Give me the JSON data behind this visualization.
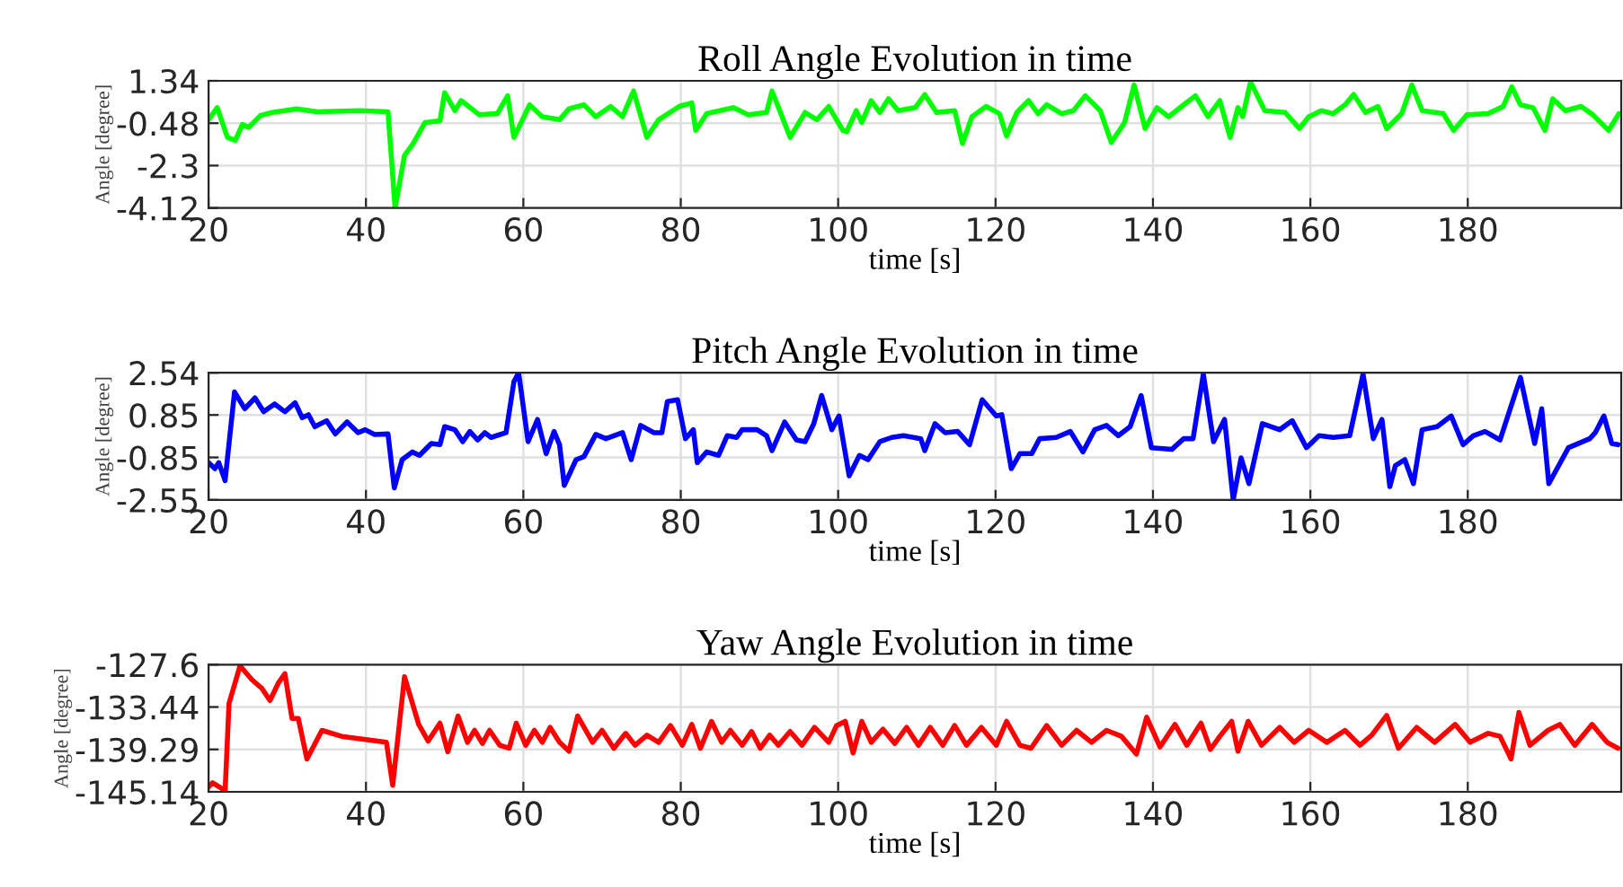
{
  "chart_data": [
    {
      "type": "line",
      "title": "Roll Angle Evolution in time",
      "xlabel": "time [s]",
      "ylabel": "Angle [degree]",
      "xlim": [
        20,
        199.5
      ],
      "xticks": [
        20,
        40,
        60,
        80,
        100,
        120,
        140,
        160,
        180
      ],
      "ylim": [
        -4.12,
        1.34
      ],
      "yticks": [
        -4.12,
        -2.3,
        -0.48,
        1.34
      ],
      "grid": true,
      "series": [
        {
          "color": "#00ff00",
          "x": [
            20,
            21.1,
            22.4,
            23.4,
            24.3,
            25.1,
            26.6,
            28.1,
            31.2,
            33.8,
            39.2,
            42.8,
            43.7,
            44.9,
            46.0,
            47.5,
            49.4,
            50.0,
            51.3,
            52.1,
            54.4,
            56.7,
            58.0,
            58.8,
            60.8,
            62.4,
            64.6,
            65.8,
            67.7,
            69.2,
            71.1,
            72.6,
            74.0,
            75.7,
            77.2,
            79.8,
            81.4,
            81.9,
            83.3,
            86.7,
            88.6,
            90.9,
            91.6,
            93.9,
            95.8,
            97.3,
            98.8,
            100.6,
            101.1,
            102.3,
            103.0,
            104.2,
            105.3,
            106.4,
            107.6,
            109.8,
            111.0,
            112.5,
            114.8,
            115.8,
            117.0,
            118.8,
            120.5,
            121.4,
            122.7,
            124.2,
            125.4,
            126.5,
            128.4,
            129.9,
            131.4,
            133.3,
            134.7,
            136.4,
            137.6,
            139.0,
            140.5,
            142.0,
            143.9,
            145.4,
            147.0,
            148.5,
            149.8,
            150.8,
            151.4,
            152.4,
            154.2,
            156.8,
            158.6,
            159.8,
            161.4,
            162.9,
            164.4,
            165.5,
            167.0,
            168.6,
            169.7,
            171.6,
            172.9,
            174.2,
            176.9,
            178.2,
            179.9,
            182.6,
            184.5,
            185.6,
            186.7,
            188.3,
            189.8,
            190.8,
            192.4,
            194.4,
            195.9,
            197.9,
            199.2
          ],
          "values": [
            -0.33,
            0.19,
            -1.09,
            -1.22,
            -0.53,
            -0.66,
            -0.15,
            -0.02,
            0.14,
            0.01,
            0.06,
            0.01,
            -4.12,
            -1.86,
            -1.35,
            -0.45,
            -0.38,
            0.83,
            0.06,
            0.49,
            -0.12,
            -0.07,
            0.7,
            -1.09,
            0.31,
            -0.2,
            -0.33,
            0.14,
            0.31,
            -0.2,
            0.24,
            -0.2,
            0.9,
            -1.09,
            -0.33,
            0.24,
            0.39,
            -0.79,
            -0.07,
            0.19,
            -0.12,
            -0.02,
            0.9,
            -1.09,
            -0.02,
            -0.33,
            0.24,
            -0.79,
            -0.84,
            0.06,
            -0.45,
            0.49,
            -0.02,
            0.57,
            0.06,
            0.19,
            0.75,
            -0.02,
            0.06,
            -1.35,
            -0.2,
            0.24,
            -0.07,
            -1.04,
            -0.02,
            0.49,
            -0.07,
            0.31,
            -0.07,
            0.06,
            0.7,
            0.06,
            -1.3,
            -0.45,
            1.16,
            -0.71,
            0.19,
            -0.2,
            0.31,
            0.7,
            -0.2,
            0.49,
            -1.09,
            0.19,
            -0.2,
            1.29,
            0.06,
            -0.02,
            -0.71,
            -0.2,
            0.06,
            -0.07,
            0.31,
            0.75,
            -0.02,
            0.24,
            -0.71,
            -0.07,
            1.16,
            0.06,
            -0.07,
            -0.79,
            -0.12,
            -0.07,
            0.24,
            1.08,
            0.31,
            0.19,
            -0.79,
            0.57,
            0.06,
            0.24,
            -0.12,
            -0.79,
            -0.07
          ]
        }
      ]
    },
    {
      "type": "line",
      "title": "Pitch Angle Evolution in time",
      "xlabel": "time [s]",
      "ylabel": "Angle [degree]",
      "xlim": [
        20,
        199.5
      ],
      "xticks": [
        20,
        40,
        60,
        80,
        100,
        120,
        140,
        160,
        180
      ],
      "ylim": [
        -2.55,
        2.54
      ],
      "yticks": [
        -2.55,
        -0.85,
        0.85,
        2.54
      ],
      "grid": true,
      "series": [
        {
          "color": "#0000ff",
          "x": [
            20,
            20.8,
            21.3,
            22.1,
            23.3,
            24.6,
            25.9,
            27.0,
            28.4,
            29.7,
            31.0,
            31.9,
            32.7,
            33.5,
            35.0,
            36.1,
            37.6,
            39.0,
            39.9,
            41.1,
            42.8,
            43.6,
            44.6,
            45.9,
            46.8,
            48.3,
            49.4,
            50.0,
            51.3,
            52.3,
            53.2,
            54.2,
            55.1,
            55.9,
            57.8,
            58.8,
            59.4,
            60.6,
            61.8,
            62.9,
            63.9,
            64.6,
            65.2,
            66.7,
            67.7,
            69.2,
            70.5,
            72.6,
            73.7,
            74.9,
            76.6,
            77.6,
            78.3,
            79.6,
            80.6,
            81.6,
            82.1,
            83.3,
            84.8,
            85.9,
            87.1,
            87.8,
            89.7,
            90.9,
            91.6,
            93.2,
            94.7,
            95.8,
            96.9,
            97.9,
            99.2,
            100.1,
            101.4,
            102.7,
            103.8,
            105.3,
            106.8,
            108.3,
            110.5,
            111.0,
            112.3,
            113.6,
            115.2,
            116.7,
            118.3,
            120.1,
            120.8,
            122.0,
            123.1,
            124.6,
            125.6,
            127.7,
            129.5,
            131.1,
            132.6,
            134.1,
            135.6,
            137.1,
            138.5,
            139.8,
            142.4,
            143.9,
            145.1,
            146.4,
            147.7,
            149.1,
            150.2,
            151.2,
            152.2,
            153.9,
            156.1,
            157.7,
            159.5,
            161.1,
            162.9,
            165.0,
            166.7,
            168.0,
            169.1,
            170.1,
            170.8,
            172.0,
            173.1,
            174.2,
            176.1,
            177.9,
            179.4,
            180.7,
            182.2,
            184.1,
            185.6,
            186.7,
            188.5,
            189.4,
            190.3,
            192.8,
            195.5,
            196.2,
            197.3,
            198.3,
            199.1
          ],
          "values": [
            -1.06,
            -1.3,
            -1.06,
            -1.78,
            1.77,
            1.1,
            1.53,
            0.98,
            1.29,
            0.98,
            1.34,
            0.74,
            0.86,
            0.38,
            0.62,
            0.09,
            0.57,
            0.14,
            0.26,
            0.07,
            0.09,
            -2.07,
            -0.94,
            -0.63,
            -0.77,
            -0.29,
            -0.34,
            0.38,
            0.26,
            -0.22,
            0.19,
            -0.15,
            0.14,
            -0.05,
            0.14,
            2.18,
            2.54,
            -0.22,
            0.67,
            -0.7,
            0.19,
            -0.34,
            -1.97,
            -0.94,
            -0.82,
            0.07,
            -0.1,
            0.14,
            -0.94,
            0.43,
            0.14,
            0.14,
            1.39,
            1.46,
            -0.1,
            0.26,
            -1.06,
            -0.63,
            -0.77,
            0.02,
            -0.05,
            0.26,
            0.26,
            0.02,
            -0.58,
            0.57,
            -0.15,
            -0.22,
            0.5,
            1.63,
            0.26,
            0.81,
            -1.59,
            -0.77,
            -0.94,
            -0.22,
            -0.05,
            0.02,
            -0.1,
            -0.58,
            0.5,
            0.14,
            0.19,
            -0.34,
            1.46,
            0.81,
            0.86,
            -1.3,
            -0.7,
            -0.7,
            -0.1,
            -0.05,
            0.19,
            -0.63,
            0.26,
            0.43,
            0.02,
            0.38,
            1.63,
            -0.46,
            -0.53,
            -0.1,
            -0.1,
            2.49,
            -0.22,
            0.67,
            -2.55,
            -0.87,
            -1.9,
            0.5,
            0.26,
            0.62,
            -0.46,
            0.02,
            -0.05,
            0.02,
            2.49,
            -0.1,
            0.67,
            -2.02,
            -1.18,
            -0.94,
            -1.9,
            0.26,
            0.38,
            0.81,
            -0.34,
            0.02,
            0.19,
            -0.15,
            1.29,
            2.35,
            -0.29,
            1.1,
            -1.9,
            -0.46,
            -0.1,
            0.14,
            0.81,
            -0.29,
            -0.34
          ]
        }
      ]
    },
    {
      "type": "line",
      "title": "Yaw Angle Evolution in time",
      "xlabel": "time [s]",
      "ylabel": "Angle [degree]",
      "xlim": [
        20,
        199.5
      ],
      "xticks": [
        20,
        40,
        60,
        80,
        100,
        120,
        140,
        160,
        180
      ],
      "ylim": [
        -145.14,
        -127.6
      ],
      "yticks": [
        -145.14,
        -139.29,
        -133.44,
        -127.6
      ],
      "grid": true,
      "series": [
        {
          "color": "#ff0000",
          "x": [
            20,
            20.5,
            21.7,
            22.1,
            22.6,
            24.0,
            25.5,
            26.8,
            27.8,
            28.9,
            29.7,
            30.6,
            31.4,
            32.5,
            34.4,
            36.9,
            42.6,
            43.4,
            44.9,
            46.7,
            47.9,
            49.4,
            50.4,
            51.7,
            52.9,
            53.8,
            54.8,
            55.7,
            57.0,
            58.2,
            59.1,
            60.3,
            61.4,
            62.4,
            63.4,
            64.6,
            65.8,
            66.9,
            68.8,
            70.0,
            71.5,
            73.0,
            74.2,
            75.7,
            77.2,
            78.7,
            80.2,
            81.4,
            82.5,
            83.9,
            85.2,
            86.3,
            87.8,
            89.0,
            90.1,
            91.3,
            92.4,
            93.9,
            95.4,
            97.0,
            98.8,
            99.8,
            100.9,
            101.9,
            103.0,
            104.2,
            105.7,
            107.2,
            108.7,
            110.2,
            111.7,
            113.3,
            114.8,
            116.3,
            118.2,
            120.1,
            121.4,
            123.1,
            124.5,
            126.5,
            128.4,
            130.3,
            132.2,
            134.1,
            136.0,
            137.9,
            139.2,
            140.9,
            142.8,
            144.3,
            146.1,
            147.3,
            148.5,
            150.0,
            150.8,
            152.1,
            153.8,
            156.1,
            157.95,
            159.8,
            162.1,
            164.4,
            166.3,
            167.8,
            169.7,
            171.2,
            173.5,
            175.8,
            178.4,
            180.3,
            182.6,
            184.1,
            185.5,
            186.5,
            187.9,
            190.2,
            191.7,
            193.6,
            195.8,
            197.7,
            199.1
          ],
          "values": [
            -144.48,
            -143.9,
            -144.7,
            -145.14,
            -132.95,
            -127.76,
            -129.66,
            -130.89,
            -132.54,
            -130.07,
            -128.84,
            -135.01,
            -135.01,
            -140.61,
            -136.66,
            -137.48,
            -138.31,
            -144.23,
            -129.25,
            -135.84,
            -138.14,
            -135.67,
            -139.62,
            -134.68,
            -138.31,
            -136.66,
            -138.47,
            -136.66,
            -138.72,
            -139.13,
            -135.67,
            -138.72,
            -136.66,
            -138.31,
            -136.25,
            -138.31,
            -139.54,
            -134.68,
            -138.31,
            -136.66,
            -139.13,
            -137.07,
            -138.72,
            -137.32,
            -138.31,
            -136.0,
            -138.72,
            -135.84,
            -139.13,
            -135.42,
            -138.31,
            -136.66,
            -138.72,
            -136.82,
            -139.13,
            -137.32,
            -138.72,
            -136.82,
            -138.72,
            -136.25,
            -138.31,
            -136.0,
            -135.42,
            -139.79,
            -135.42,
            -138.31,
            -136.49,
            -138.47,
            -136.25,
            -138.72,
            -136.25,
            -138.72,
            -136.0,
            -138.72,
            -136.25,
            -138.72,
            -135.42,
            -138.72,
            -139.13,
            -136.0,
            -138.72,
            -136.66,
            -138.31,
            -136.66,
            -137.48,
            -139.95,
            -134.85,
            -138.96,
            -135.84,
            -138.72,
            -135.67,
            -139.29,
            -137.48,
            -135.42,
            -139.54,
            -135.42,
            -138.72,
            -136.25,
            -138.31,
            -136.66,
            -138.31,
            -136.66,
            -138.72,
            -137.32,
            -134.6,
            -139.13,
            -136.25,
            -138.31,
            -135.84,
            -138.31,
            -137.07,
            -137.48,
            -140.61,
            -134.19,
            -138.72,
            -136.66,
            -135.84,
            -138.72,
            -135.84,
            -138.31,
            -139.13
          ]
        }
      ]
    }
  ]
}
